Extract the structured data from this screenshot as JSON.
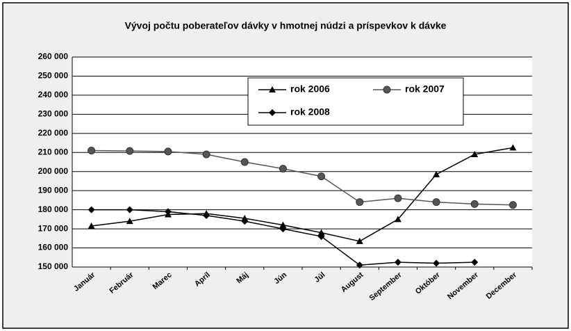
{
  "chart_data": {
    "type": "line",
    "title": "Vývoj  počtu poberateľov dávky v hmotnej núdzi a príspevkov k dávke",
    "categories": [
      "Január",
      "Február",
      "Marec",
      "Apríl",
      "Máj",
      "Jún",
      "Júl",
      "August",
      "September",
      "Október",
      "November",
      "December"
    ],
    "series": [
      {
        "name": "rok 2006",
        "color": "#000000",
        "marker": "triangle",
        "values": [
          171500,
          174000,
          177500,
          178000,
          175500,
          172000,
          168000,
          163500,
          175000,
          198500,
          209000,
          212500
        ]
      },
      {
        "name": "rok 2007",
        "color": "#555555",
        "marker": "circle",
        "values": [
          211000,
          210800,
          210500,
          209000,
          205000,
          201500,
          197500,
          184000,
          186000,
          184000,
          183000,
          182500
        ]
      },
      {
        "name": "rok 2008",
        "color": "#000000",
        "marker": "diamond",
        "values": [
          180000,
          180000,
          179000,
          177000,
          174000,
          170000,
          166000,
          151000,
          152500,
          152000,
          152500,
          null
        ]
      }
    ],
    "ylim": [
      150000,
      260000
    ],
    "yticks": [
      {
        "value": 150000,
        "label": "150 000"
      },
      {
        "value": 160000,
        "label": "160 000"
      },
      {
        "value": 170000,
        "label": "170 000"
      },
      {
        "value": 180000,
        "label": "180 000"
      },
      {
        "value": 190000,
        "label": "190 000"
      },
      {
        "value": 200000,
        "label": "200 000"
      },
      {
        "value": 210000,
        "label": "210 000"
      },
      {
        "value": 220000,
        "label": "220 000"
      },
      {
        "value": 230000,
        "label": "230 000"
      },
      {
        "value": 240000,
        "label": "240 000"
      },
      {
        "value": 250000,
        "label": "250 000"
      },
      {
        "value": 260000,
        "label": "260 000"
      }
    ],
    "grid": true
  }
}
